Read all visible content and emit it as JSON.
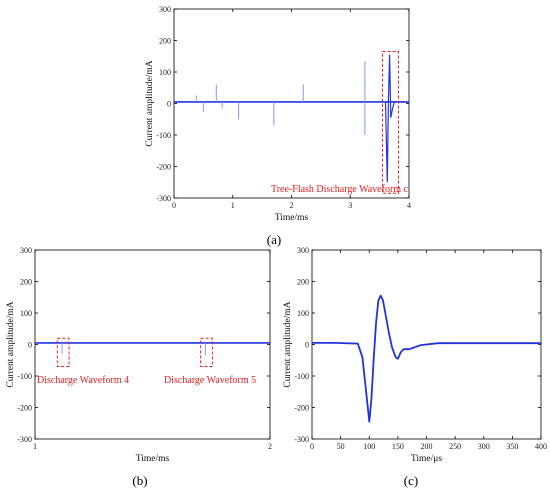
{
  "chart_data": [
    {
      "panel": "(a)",
      "type": "line",
      "xlabel": "Time/ms",
      "ylabel": "Current amplitude/mA",
      "xlim": [
        0,
        4
      ],
      "ylim": [
        -300,
        300
      ],
      "xticks": [
        0,
        1,
        2,
        3,
        4
      ],
      "yticks": [
        -300,
        -200,
        -100,
        0,
        100,
        200,
        300
      ],
      "baseline": 5,
      "pulses": [
        {
          "x": 0.38,
          "y": 25
        },
        {
          "x": 0.5,
          "y": -25
        },
        {
          "x": 0.72,
          "y": 60
        },
        {
          "x": 0.82,
          "y": -15
        },
        {
          "x": 1.1,
          "y": -50
        },
        {
          "x": 1.7,
          "y": -70
        },
        {
          "x": 2.2,
          "y": 60
        },
        {
          "x": 3.25,
          "y": 135
        },
        {
          "x": 3.25,
          "y": -100
        }
      ],
      "waveform_segment": {
        "x": [
          3.55,
          3.6,
          3.63,
          3.65,
          3.67,
          3.69,
          3.72,
          3.75,
          3.8,
          3.85,
          3.9
        ],
        "y": [
          5,
          5,
          -250,
          5,
          155,
          -45,
          -15,
          5,
          5,
          5,
          5
        ]
      },
      "highlight_box": {
        "x": [
          3.55,
          3.82
        ],
        "y": [
          -285,
          165
        ]
      },
      "annotation": "Tree-Flash Discharge Waveform c"
    },
    {
      "panel": "(b)",
      "type": "line",
      "xlabel": "Time/ms",
      "ylabel": "Current amplitude/mA",
      "xlim": [
        1,
        2
      ],
      "ylim": [
        -300,
        300
      ],
      "xticks": [
        1,
        2
      ],
      "yticks": [
        -300,
        -200,
        -100,
        0,
        100,
        200,
        300
      ],
      "baseline": 5,
      "pulses": [
        {
          "x": 1.115,
          "y": -30
        },
        {
          "x": 1.725,
          "y": -35
        }
      ],
      "highlight_boxes": [
        {
          "x": [
            1.095,
            1.145
          ],
          "y": [
            -70,
            20
          ]
        },
        {
          "x": [
            1.705,
            1.755
          ],
          "y": [
            -70,
            20
          ]
        }
      ],
      "annotations": [
        "Discharge Waveform 4",
        "Discharge Waveform 5"
      ]
    },
    {
      "panel": "(c)",
      "type": "line",
      "xlabel": "Time/μs",
      "ylabel": "Current amplitude/mA",
      "xlim": [
        0,
        400
      ],
      "ylim": [
        -300,
        300
      ],
      "xticks": [
        0,
        50,
        100,
        150,
        200,
        250,
        300,
        350,
        400
      ],
      "yticks": [
        -300,
        -200,
        -100,
        0,
        100,
        200,
        300
      ],
      "series": [
        {
          "x": [
            0,
            40,
            80,
            88,
            94,
            100,
            104,
            108,
            112,
            116,
            120,
            124,
            128,
            134,
            140,
            146,
            150,
            155,
            160,
            170,
            190,
            220,
            260,
            320,
            400
          ],
          "y": [
            5,
            5,
            3,
            -40,
            -140,
            -245,
            -170,
            -40,
            70,
            140,
            155,
            140,
            100,
            40,
            -10,
            -40,
            -45,
            -25,
            -15,
            -15,
            -2,
            4,
            4,
            4,
            4
          ]
        }
      ]
    }
  ],
  "colors": {
    "signal": "#2233dd",
    "pulse": "#8d93ee",
    "annotation": "#e02020",
    "frame": "#000000"
  }
}
